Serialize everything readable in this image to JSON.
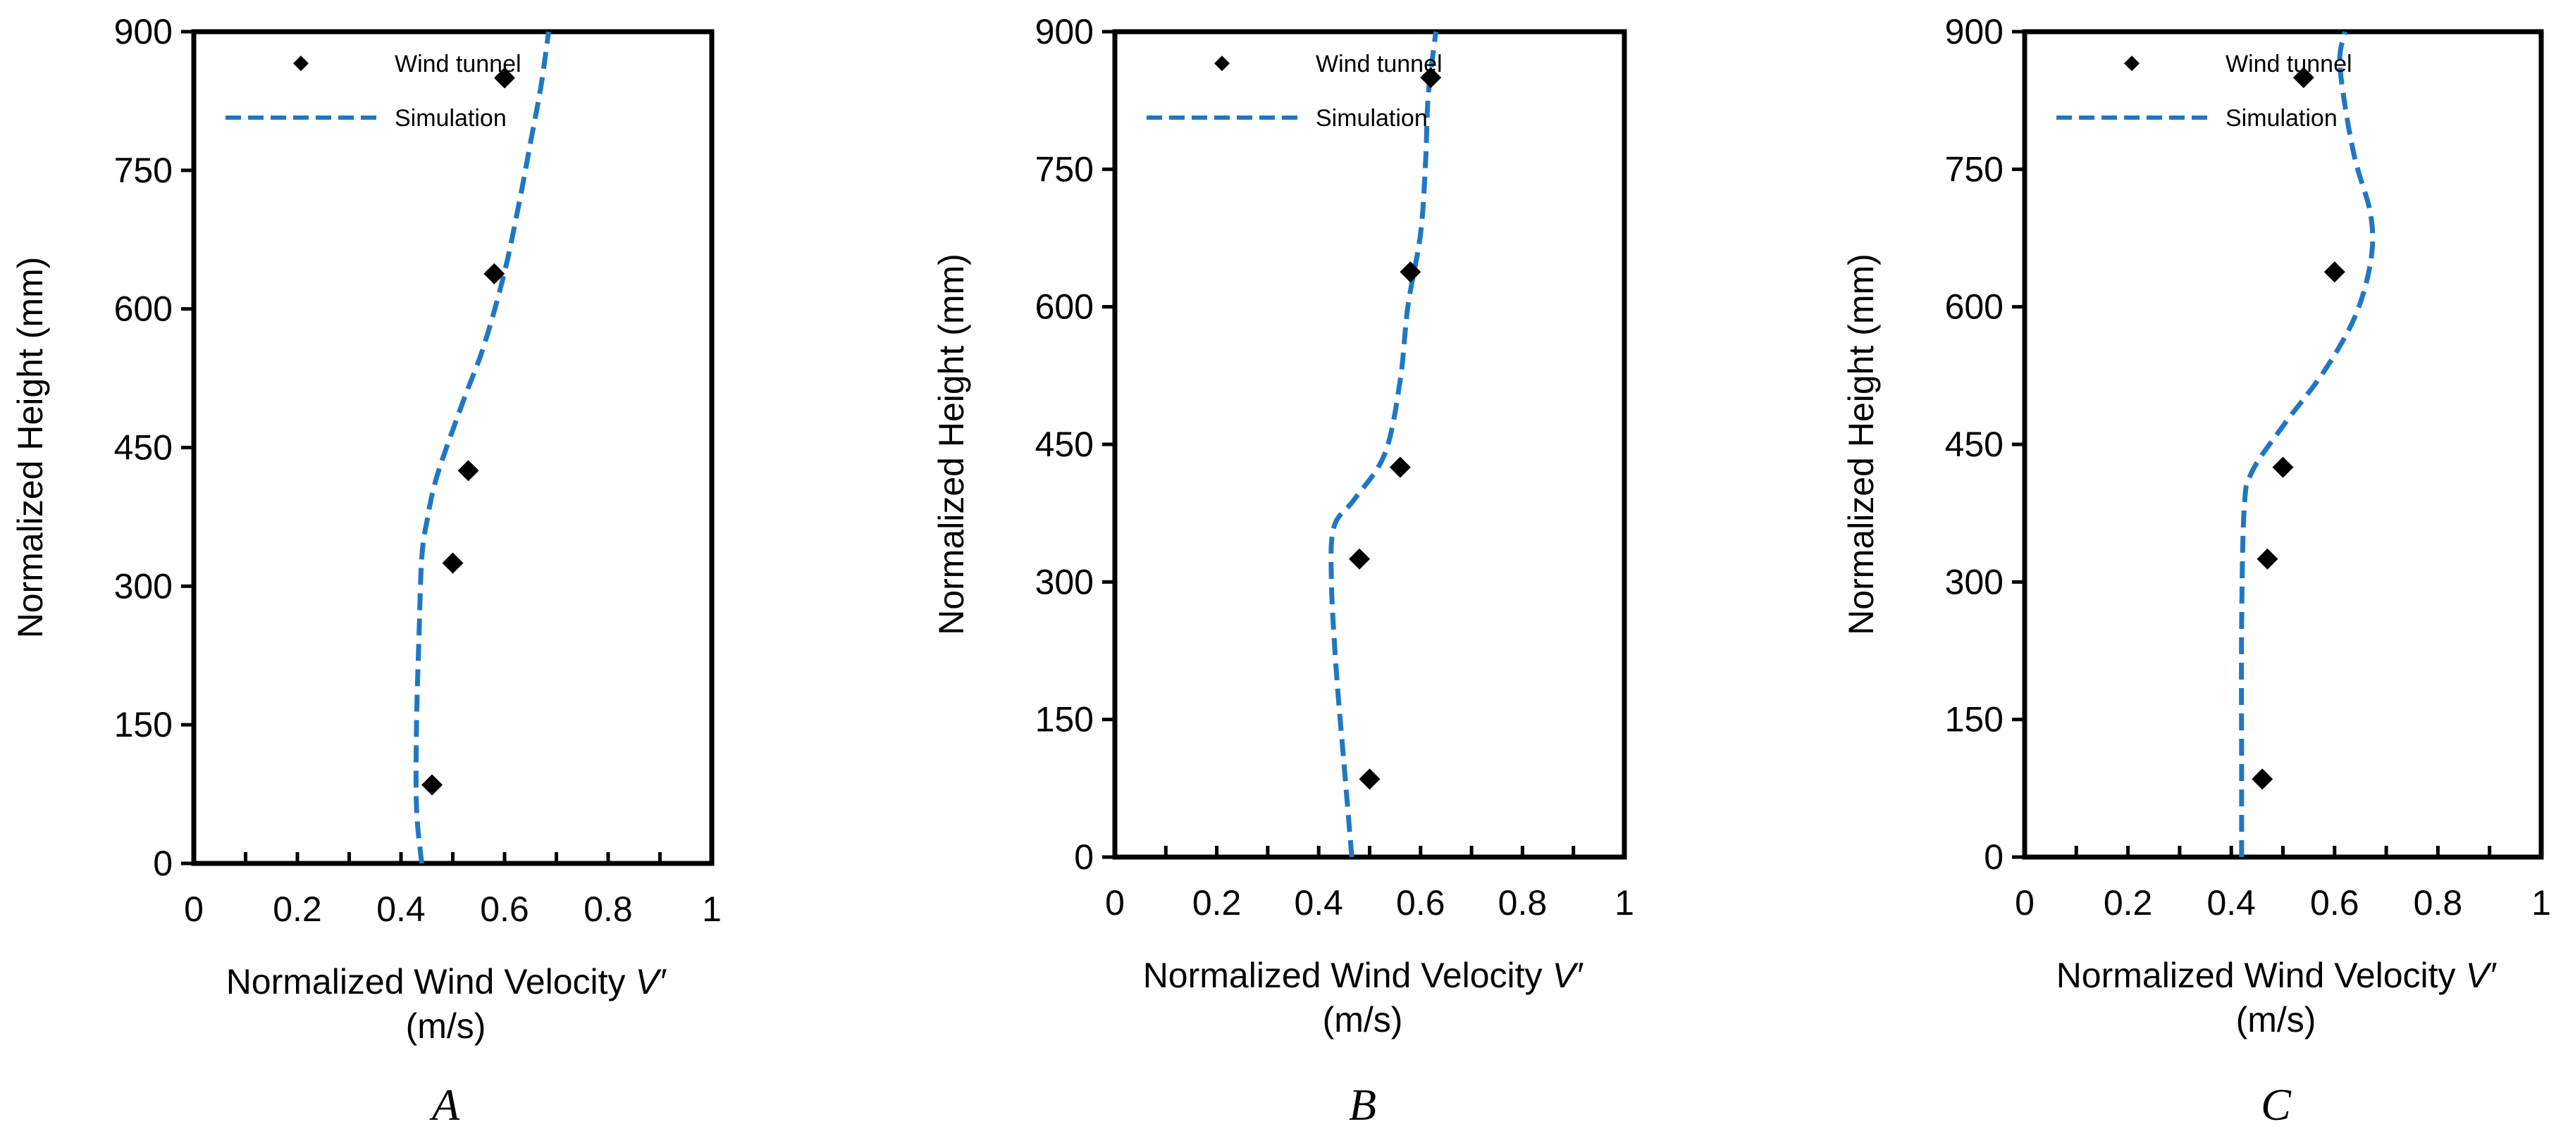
{
  "colors": {
    "simulation": "#1f77c4",
    "wind_tunnel": "#000000",
    "axis": "#000000"
  },
  "chart_data": [
    {
      "type": "scatter",
      "panel_label": "A",
      "xlabel": "Normalized Wind Velocity",
      "xlabel_symbol": "V′",
      "xlabel_unit": "(m/s)",
      "ylabel": "Normalized  Height (mm)",
      "xlim": [
        0,
        1
      ],
      "ylim": [
        0,
        900
      ],
      "xticks": [
        "0",
        "0.2",
        "0.4",
        "0.6",
        "0.8",
        "1"
      ],
      "yticks": [
        "0",
        "150",
        "300",
        "450",
        "600",
        "750",
        "900"
      ],
      "legend": [
        "Wind tunnel",
        "Simulation"
      ],
      "series": [
        {
          "name": "Wind tunnel",
          "kind": "markers",
          "x": [
            0.46,
            0.5,
            0.53,
            0.58,
            0.6
          ],
          "y": [
            85,
            325,
            425,
            638,
            850
          ]
        },
        {
          "name": "Simulation",
          "kind": "dashed-line",
          "x": [
            0.44,
            0.43,
            0.43,
            0.435,
            0.44,
            0.45,
            0.47,
            0.52,
            0.56,
            0.6,
            0.63,
            0.65,
            0.67,
            0.685
          ],
          "y": [
            0,
            60,
            150,
            250,
            330,
            370,
            420,
            500,
            560,
            640,
            720,
            780,
            840,
            900
          ]
        }
      ]
    },
    {
      "type": "scatter",
      "panel_label": "B",
      "xlabel": "Normalized Wind Velocity",
      "xlabel_symbol": "V′",
      "xlabel_unit": "(m/s)",
      "ylabel": "Normalized  Height (mm)",
      "xlim": [
        0,
        1
      ],
      "ylim": [
        0,
        900
      ],
      "xticks": [
        "0",
        "0.2",
        "0.4",
        "0.6",
        "0.8",
        "1"
      ],
      "yticks": [
        "0",
        "150",
        "300",
        "450",
        "600",
        "750",
        "900"
      ],
      "legend": [
        "Wind tunnel",
        "Simulation"
      ],
      "series": [
        {
          "name": "Wind tunnel",
          "kind": "markers",
          "x": [
            0.5,
            0.48,
            0.56,
            0.58,
            0.62
          ],
          "y": [
            85,
            325,
            425,
            638,
            850
          ]
        },
        {
          "name": "Simulation",
          "kind": "dashed-line",
          "x": [
            0.465,
            0.45,
            0.435,
            0.425,
            0.43,
            0.47,
            0.53,
            0.56,
            0.575,
            0.6,
            0.61,
            0.615,
            0.63
          ],
          "y": [
            0,
            100,
            200,
            300,
            360,
            390,
            440,
            520,
            600,
            680,
            760,
            830,
            900
          ]
        }
      ]
    },
    {
      "type": "scatter",
      "panel_label": "C",
      "xlabel": "Normalized Wind Velocity",
      "xlabel_symbol": "V′",
      "xlabel_unit": "(m/s)",
      "ylabel": "Normalized  Height (mm)",
      "xlim": [
        0,
        1
      ],
      "ylim": [
        0,
        900
      ],
      "xticks": [
        "0",
        "0.2",
        "0.4",
        "0.6",
        "0.8",
        "1"
      ],
      "yticks": [
        "0",
        "150",
        "300",
        "450",
        "600",
        "750",
        "900"
      ],
      "legend": [
        "Wind tunnel",
        "Simulation"
      ],
      "series": [
        {
          "name": "Wind tunnel",
          "kind": "markers",
          "x": [
            0.46,
            0.47,
            0.5,
            0.6,
            0.54
          ],
          "y": [
            85,
            325,
            425,
            638,
            850
          ]
        },
        {
          "name": "Simulation",
          "kind": "dashed-line",
          "x": [
            0.42,
            0.42,
            0.42,
            0.425,
            0.44,
            0.5,
            0.58,
            0.64,
            0.67,
            0.67,
            0.64,
            0.62,
            0.61,
            0.62
          ],
          "y": [
            0,
            100,
            250,
            380,
            420,
            470,
            530,
            590,
            650,
            700,
            760,
            820,
            870,
            900
          ]
        }
      ]
    }
  ]
}
